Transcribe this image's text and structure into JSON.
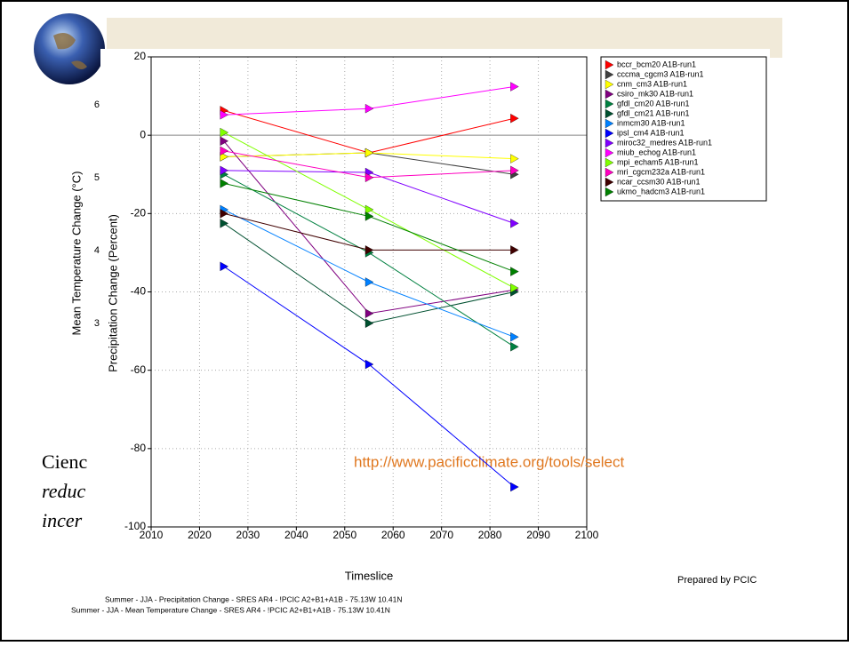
{
  "slide": {
    "y_label": "Mean Temperature Change (°C)",
    "yticks": [
      "6",
      "5",
      "4",
      "3"
    ],
    "text_lines": [
      "Cienc",
      "reduc",
      "incer"
    ]
  },
  "chart_data": {
    "type": "line",
    "x_label": "Timeslice",
    "y_label": "Precipitation Change (Percent)",
    "annotation": "http://www.pacificclimate.org/tools/select",
    "credit": "Prepared by PCIC",
    "footer": [
      "Summer - JJA - Precipitation Change - SRES AR4 - !PCIC A2+B1+A1B - 75.13W 10.41N",
      "Summer - JJA - Mean Temperature Change - SRES AR4 - !PCIC A2+B1+A1B - 75.13W 10.41N"
    ],
    "x": [
      2025,
      2055,
      2085
    ],
    "xlim": [
      2010,
      2100
    ],
    "xticks": [
      2010,
      2020,
      2030,
      2040,
      2050,
      2060,
      2070,
      2080,
      2090,
      2100
    ],
    "ylim": [
      -100,
      20
    ],
    "yticks": [
      -100,
      -80,
      -60,
      -40,
      -20,
      0,
      20
    ],
    "grid": true,
    "legend": "upper right",
    "series": [
      {
        "name": "bccr_bcm20 A1B-run1",
        "color": "#ff0000",
        "values": [
          6.3,
          -4.5,
          4.3
        ]
      },
      {
        "name": "cccma_cgcm3 A1B-run1",
        "color": "#404040",
        "values": [
          -5.5,
          -4.5,
          -10
        ]
      },
      {
        "name": "cnm_cm3 A1B-run1",
        "color": "#ffff00",
        "values": [
          -5.5,
          -4.5,
          -6
        ]
      },
      {
        "name": "csiro_mk30 A1B-run1",
        "color": "#800080",
        "values": [
          -1.5,
          -45.5,
          -39.5
        ]
      },
      {
        "name": "gfdl_cm20 A1B-run1",
        "color": "#008040",
        "values": [
          -10,
          -30,
          -54
        ]
      },
      {
        "name": "gfdl_cm21 A1B-run1",
        "color": "#005030",
        "values": [
          -22.5,
          -48,
          -40
        ]
      },
      {
        "name": "inmcm30 A1B-run1",
        "color": "#0080ff",
        "values": [
          -19,
          -37.5,
          -51.5
        ]
      },
      {
        "name": "ipsl_cm4 A1B-run1",
        "color": "#0000ff",
        "values": [
          -33.5,
          -58.5,
          -89.8
        ]
      },
      {
        "name": "miroc32_medres A1B-run1",
        "color": "#8000ff",
        "values": [
          -9,
          -9.5,
          -22.5
        ]
      },
      {
        "name": "miub_echog A1B-run1",
        "color": "#ff00ff",
        "values": [
          5.2,
          6.8,
          12.4
        ]
      },
      {
        "name": "mpi_echam5 A1B-run1",
        "color": "#80ff00",
        "values": [
          0.7,
          -19,
          -39
        ]
      },
      {
        "name": "mri_cgcm232a A1B-run1",
        "color": "#ff00c0",
        "values": [
          -4,
          -10.8,
          -9
        ]
      },
      {
        "name": "ncar_ccsm30 A1B-run1",
        "color": "#400000",
        "values": [
          -20,
          -29.3,
          -29.3
        ]
      },
      {
        "name": "ukmo_hadcm3 A1B-run1",
        "color": "#008000",
        "values": [
          -12.3,
          -20.7,
          -34.8
        ]
      }
    ]
  }
}
